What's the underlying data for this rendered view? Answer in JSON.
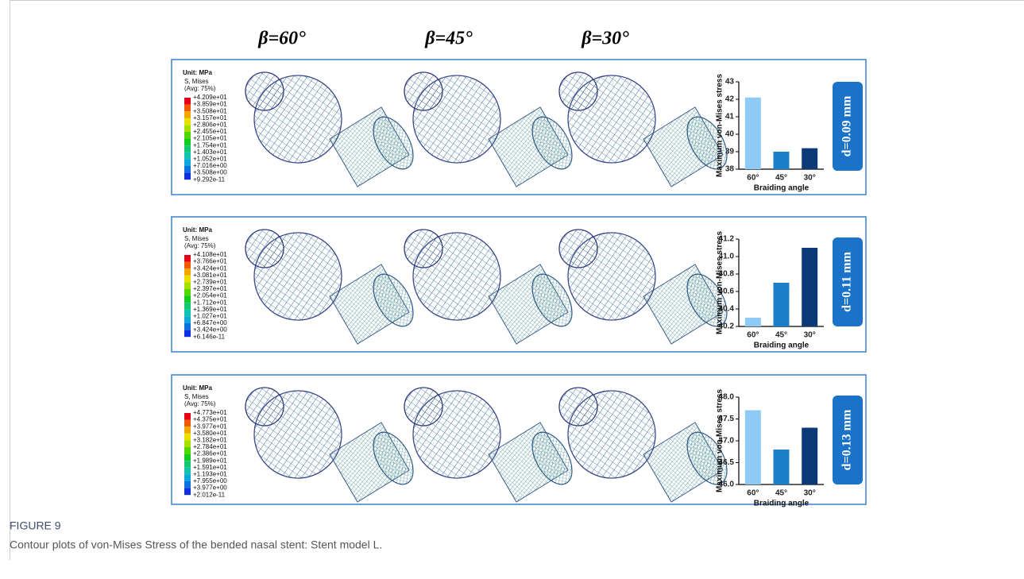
{
  "figure": {
    "column_headers": [
      "β=60°",
      "β=45°",
      "β=30°"
    ],
    "panels": [
      {
        "legend": {
          "unit": "Unit: MPa",
          "variable": "S, Mises",
          "averaging": "(Avg: 75%)",
          "values": [
            "+4.209e+01",
            "+3.859e+01",
            "+3.508e+01",
            "+3.157e+01",
            "+2.806e+01",
            "+2.455e+01",
            "+2.105e+01",
            "+1.754e+01",
            "+1.403e+01",
            "+1.052e+01",
            "+7.016e+00",
            "+3.508e+00",
            "+9.292e-11"
          ]
        },
        "thickness_label": "d=0.09 mm"
      },
      {
        "legend": {
          "unit": "Unit: MPa",
          "variable": "S, Mises",
          "averaging": "(Avg: 75%)",
          "values": [
            "+4.108e+01",
            "+3.766e+01",
            "+3.424e+01",
            "+3.081e+01",
            "+2.739e+01",
            "+2.397e+01",
            "+2.054e+01",
            "+1.712e+01",
            "+1.369e+01",
            "+1.027e+01",
            "+6.847e+00",
            "+3.424e+00",
            "+6.146e-11"
          ]
        },
        "thickness_label": "d=0.11 mm"
      },
      {
        "legend": {
          "unit": "Unit: MPa",
          "variable": "S, Mises",
          "averaging": "(Avg: 75%)",
          "values": [
            "+4.773e+01",
            "+4.375e+01",
            "+3.977e+01",
            "+3.580e+01",
            "+3.182e+01",
            "+2.784e+01",
            "+2.386e+01",
            "+1.989e+01",
            "+1.591e+01",
            "+1.193e+01",
            "+7.955e+00",
            "+3.977e+00",
            "+2.012e-11"
          ]
        },
        "thickness_label": "d=0.13 mm"
      }
    ]
  },
  "chart_data": [
    {
      "type": "bar",
      "categories": [
        "60°",
        "45°",
        "30°"
      ],
      "values": [
        42.1,
        39.0,
        39.2
      ],
      "colors": [
        "#8ecaf6",
        "#1a7fc8",
        "#0c3a78"
      ],
      "ylim": [
        38,
        43
      ],
      "yticks": [
        38,
        39,
        40,
        41,
        42,
        43
      ],
      "ylabel": "Maximum von-Mises stress",
      "xlabel": "Braiding angle"
    },
    {
      "type": "bar",
      "categories": [
        "60°",
        "45°",
        "30°"
      ],
      "values": [
        40.3,
        40.7,
        41.1
      ],
      "colors": [
        "#8ecaf6",
        "#1a7fc8",
        "#0c3a78"
      ],
      "ylim": [
        40.2,
        41.2
      ],
      "yticks": [
        40.2,
        40.4,
        40.6,
        40.8,
        {
          "value": 41,
          "label": "41.0"
        },
        41.2
      ],
      "ylabel": "Maximum von-Mises stress",
      "xlabel": "Braiding angle"
    },
    {
      "type": "bar",
      "categories": [
        "60°",
        "45°",
        "30°"
      ],
      "values": [
        47.7,
        46.8,
        47.3
      ],
      "colors": [
        "#8ecaf6",
        "#1a7fc8",
        "#0c3a78"
      ],
      "ylim": [
        46,
        48
      ],
      "yticks": [
        {
          "value": 46,
          "label": "46.0"
        },
        46.5,
        {
          "value": 47,
          "label": "47.0"
        },
        47.5,
        {
          "value": 48,
          "label": "48.0"
        }
      ],
      "ylabel": "Maximum von-Mises stress",
      "xlabel": "Braiding angle"
    }
  ],
  "caption": {
    "label": "FIGURE 9",
    "text": "Contour plots of von-Mises Stress of the bended nasal stent: Stent model L."
  }
}
